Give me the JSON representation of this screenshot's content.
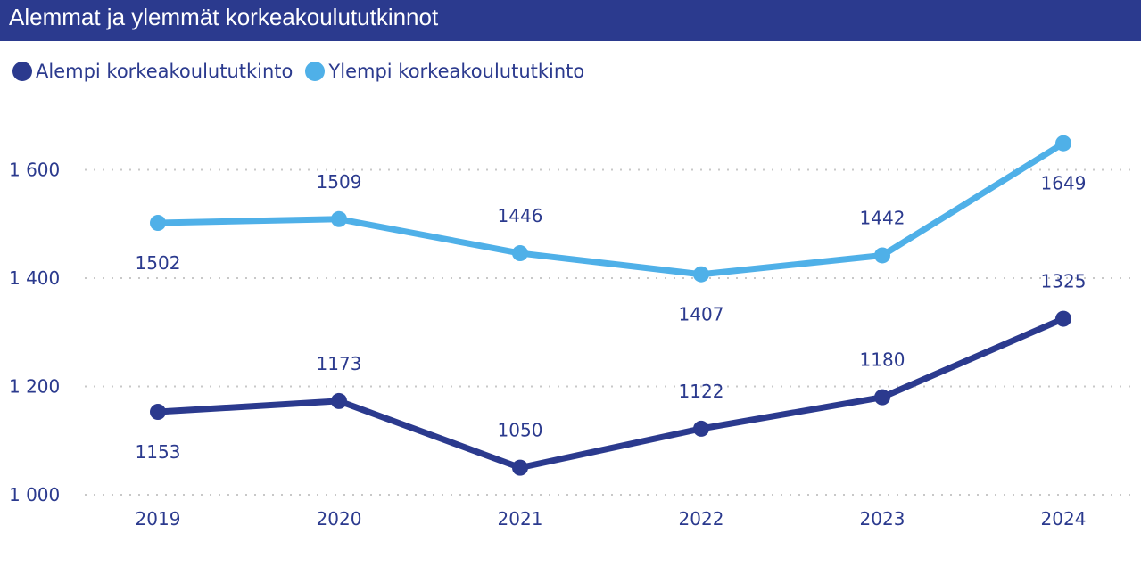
{
  "title": "Alemmat ja ylemmät korkeakoulututkinnot",
  "colors": {
    "header_bg": "#2b3a8e",
    "series_dark": "#2b3a8e",
    "series_light": "#4fb0e8",
    "text": "#2b3a8e",
    "grid": "#c8c8c8"
  },
  "chart_data": {
    "type": "line",
    "x": [
      "2019",
      "2020",
      "2021",
      "2022",
      "2023",
      "2024"
    ],
    "series": [
      {
        "name": "Alempi korkeakoulututkinto",
        "color": "#2b3a8e",
        "values": [
          1153,
          1173,
          1050,
          1122,
          1180,
          1325
        ],
        "labels": [
          "1153",
          "1173",
          "1050",
          "1122",
          "1180",
          "1325"
        ],
        "label_side": [
          "below",
          "above",
          "above",
          "above",
          "above",
          "above"
        ]
      },
      {
        "name": "Ylempi korkeakoulututkinto",
        "color": "#4fb0e8",
        "values": [
          1502,
          1509,
          1446,
          1407,
          1442,
          1649
        ],
        "labels": [
          "1502",
          "1509",
          "1446",
          "1407",
          "1442",
          "1649"
        ],
        "label_side": [
          "below",
          "above",
          "above",
          "below",
          "above",
          "below"
        ]
      }
    ],
    "yticks": [
      1000,
      1200,
      1400,
      1600
    ],
    "ytick_labels": [
      "1 000",
      "1 200",
      "1 400",
      "1 600"
    ],
    "ylim": [
      1000,
      1680
    ],
    "grid": true,
    "grid_style": "dotted-horizontal",
    "legend_position": "top-left"
  }
}
